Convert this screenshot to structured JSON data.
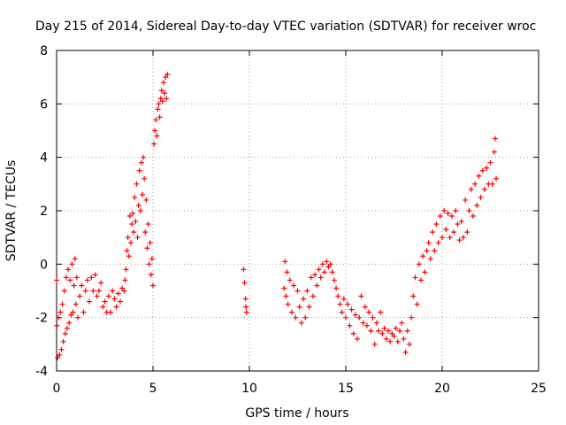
{
  "chart_data": {
    "type": "scatter",
    "title": "Day 215 of 2014, Sidereal Day-to-day VTEC variation (SDTVAR) for receiver wroc",
    "xlabel": "GPS time / hours",
    "ylabel": "SDTVAR / TECUs",
    "xlim": [
      0,
      25
    ],
    "ylim": [
      -4,
      8
    ],
    "xticks": [
      "0",
      "5",
      "10",
      "15",
      "20",
      "25"
    ],
    "yticks": [
      "-4",
      "-2",
      "0",
      "2",
      "4",
      "6",
      "8"
    ],
    "grid": true,
    "marker": "plus",
    "color": "#ff0000",
    "series": [
      {
        "name": "SDTVAR",
        "points": [
          [
            0.0,
            -0.6
          ],
          [
            0.02,
            -2.3
          ],
          [
            0.05,
            -3.5
          ],
          [
            0.1,
            -2.0
          ],
          [
            0.15,
            -3.4
          ],
          [
            0.2,
            -1.8
          ],
          [
            0.25,
            -3.2
          ],
          [
            0.3,
            -1.5
          ],
          [
            0.35,
            -2.9
          ],
          [
            0.4,
            -1.0
          ],
          [
            0.45,
            -2.6
          ],
          [
            0.5,
            -0.5
          ],
          [
            0.55,
            -2.4
          ],
          [
            0.6,
            -0.2
          ],
          [
            0.65,
            -2.2
          ],
          [
            0.7,
            -0.6
          ],
          [
            0.75,
            -1.9
          ],
          [
            0.8,
            0.0
          ],
          [
            0.85,
            -1.8
          ],
          [
            0.9,
            -0.8
          ],
          [
            0.95,
            0.2
          ],
          [
            1.0,
            -1.5
          ],
          [
            1.05,
            -0.5
          ],
          [
            1.1,
            -2.0
          ],
          [
            1.2,
            -1.2
          ],
          [
            1.3,
            -0.8
          ],
          [
            1.4,
            -1.8
          ],
          [
            1.5,
            -1.0
          ],
          [
            1.6,
            -0.6
          ],
          [
            1.7,
            -1.4
          ],
          [
            1.8,
            -0.5
          ],
          [
            1.9,
            -1.0
          ],
          [
            2.0,
            -0.4
          ],
          [
            2.1,
            -1.2
          ],
          [
            2.2,
            -1.0
          ],
          [
            2.3,
            -0.7
          ],
          [
            2.4,
            -1.6
          ],
          [
            2.5,
            -1.4
          ],
          [
            2.6,
            -1.8
          ],
          [
            2.7,
            -1.2
          ],
          [
            2.8,
            -1.8
          ],
          [
            2.9,
            -1.0
          ],
          [
            3.0,
            -1.3
          ],
          [
            3.1,
            -1.6
          ],
          [
            3.2,
            -1.1
          ],
          [
            3.3,
            -1.4
          ],
          [
            3.4,
            -0.9
          ],
          [
            3.5,
            -1.0
          ],
          [
            3.55,
            -0.6
          ],
          [
            3.6,
            -0.2
          ],
          [
            3.65,
            0.5
          ],
          [
            3.7,
            1.0
          ],
          [
            3.75,
            0.3
          ],
          [
            3.8,
            1.8
          ],
          [
            3.85,
            0.8
          ],
          [
            3.9,
            1.5
          ],
          [
            3.95,
            1.9
          ],
          [
            4.0,
            1.2
          ],
          [
            4.05,
            2.5
          ],
          [
            4.1,
            1.6
          ],
          [
            4.15,
            3.0
          ],
          [
            4.2,
            1.0
          ],
          [
            4.25,
            2.2
          ],
          [
            4.3,
            3.5
          ],
          [
            4.35,
            2.0
          ],
          [
            4.4,
            3.8
          ],
          [
            4.45,
            2.6
          ],
          [
            4.5,
            4.0
          ],
          [
            4.55,
            3.2
          ],
          [
            4.6,
            1.2
          ],
          [
            4.65,
            2.4
          ],
          [
            4.7,
            0.6
          ],
          [
            4.75,
            1.5
          ],
          [
            4.8,
            0.0
          ],
          [
            4.85,
            0.8
          ],
          [
            4.9,
            -0.4
          ],
          [
            4.95,
            0.2
          ],
          [
            5.0,
            -0.8
          ],
          [
            5.05,
            4.5
          ],
          [
            5.1,
            5.0
          ],
          [
            5.15,
            5.4
          ],
          [
            5.2,
            4.8
          ],
          [
            5.25,
            5.8
          ],
          [
            5.3,
            6.0
          ],
          [
            5.35,
            5.5
          ],
          [
            5.4,
            6.2
          ],
          [
            5.45,
            6.5
          ],
          [
            5.5,
            6.1
          ],
          [
            5.55,
            6.8
          ],
          [
            5.6,
            6.4
          ],
          [
            5.65,
            7.0
          ],
          [
            5.7,
            6.2
          ],
          [
            5.75,
            7.1
          ],
          [
            9.7,
            -0.2
          ],
          [
            9.75,
            -0.7
          ],
          [
            9.8,
            -1.3
          ],
          [
            9.82,
            -1.6
          ],
          [
            9.85,
            -1.8
          ],
          [
            11.8,
            -0.9
          ],
          [
            11.85,
            0.1
          ],
          [
            11.9,
            -1.2
          ],
          [
            11.95,
            -0.3
          ],
          [
            12.0,
            -1.5
          ],
          [
            12.1,
            -0.6
          ],
          [
            12.2,
            -1.8
          ],
          [
            12.3,
            -0.8
          ],
          [
            12.4,
            -2.0
          ],
          [
            12.5,
            -1.0
          ],
          [
            12.6,
            -1.6
          ],
          [
            12.7,
            -2.2
          ],
          [
            12.8,
            -1.3
          ],
          [
            12.9,
            -2.0
          ],
          [
            13.0,
            -1.0
          ],
          [
            13.1,
            -1.6
          ],
          [
            13.2,
            -0.5
          ],
          [
            13.3,
            -1.2
          ],
          [
            13.4,
            -0.4
          ],
          [
            13.5,
            -0.8
          ],
          [
            13.6,
            -0.2
          ],
          [
            13.7,
            -0.5
          ],
          [
            13.8,
            0.0
          ],
          [
            13.9,
            -0.3
          ],
          [
            14.0,
            0.1
          ],
          [
            14.1,
            -0.1
          ],
          [
            14.2,
            0.0
          ],
          [
            14.3,
            -0.3
          ],
          [
            14.4,
            -0.6
          ],
          [
            14.5,
            -0.9
          ],
          [
            14.6,
            -1.2
          ],
          [
            14.7,
            -1.5
          ],
          [
            14.8,
            -1.8
          ],
          [
            14.9,
            -1.3
          ],
          [
            15.0,
            -2.0
          ],
          [
            15.1,
            -1.5
          ],
          [
            15.2,
            -2.3
          ],
          [
            15.3,
            -1.7
          ],
          [
            15.4,
            -2.6
          ],
          [
            15.5,
            -1.9
          ],
          [
            15.6,
            -2.8
          ],
          [
            15.7,
            -2.0
          ],
          [
            15.8,
            -1.2
          ],
          [
            15.9,
            -2.2
          ],
          [
            16.0,
            -1.6
          ],
          [
            16.1,
            -2.3
          ],
          [
            16.2,
            -1.8
          ],
          [
            16.3,
            -2.5
          ],
          [
            16.4,
            -2.0
          ],
          [
            16.5,
            -3.0
          ],
          [
            16.6,
            -2.2
          ],
          [
            16.7,
            -2.5
          ],
          [
            16.8,
            -1.8
          ],
          [
            16.9,
            -2.6
          ],
          [
            17.0,
            -2.4
          ],
          [
            17.1,
            -2.8
          ],
          [
            17.2,
            -2.5
          ],
          [
            17.3,
            -2.9
          ],
          [
            17.4,
            -2.6
          ],
          [
            17.5,
            -2.7
          ],
          [
            17.6,
            -2.4
          ],
          [
            17.7,
            -2.9
          ],
          [
            17.8,
            -2.5
          ],
          [
            17.9,
            -2.2
          ],
          [
            18.0,
            -2.8
          ],
          [
            18.1,
            -3.3
          ],
          [
            18.2,
            -2.5
          ],
          [
            18.3,
            -3.0
          ],
          [
            18.4,
            -2.0
          ],
          [
            18.5,
            -1.2
          ],
          [
            18.6,
            -0.5
          ],
          [
            18.7,
            -1.5
          ],
          [
            18.8,
            0.0
          ],
          [
            18.9,
            -0.6
          ],
          [
            19.0,
            0.3
          ],
          [
            19.1,
            -0.3
          ],
          [
            19.2,
            0.5
          ],
          [
            19.3,
            0.8
          ],
          [
            19.4,
            0.2
          ],
          [
            19.5,
            1.2
          ],
          [
            19.6,
            0.5
          ],
          [
            19.7,
            1.5
          ],
          [
            19.8,
            0.8
          ],
          [
            19.9,
            1.8
          ],
          [
            20.0,
            1.0
          ],
          [
            20.1,
            2.0
          ],
          [
            20.2,
            1.3
          ],
          [
            20.3,
            1.9
          ],
          [
            20.4,
            1.0
          ],
          [
            20.5,
            1.8
          ],
          [
            20.6,
            1.2
          ],
          [
            20.7,
            2.0
          ],
          [
            20.8,
            1.5
          ],
          [
            20.9,
            0.9
          ],
          [
            21.0,
            1.6
          ],
          [
            21.1,
            1.0
          ],
          [
            21.2,
            2.4
          ],
          [
            21.3,
            1.2
          ],
          [
            21.4,
            2.0
          ],
          [
            21.5,
            2.8
          ],
          [
            21.6,
            1.8
          ],
          [
            21.7,
            3.0
          ],
          [
            21.8,
            2.2
          ],
          [
            21.9,
            3.3
          ],
          [
            22.0,
            2.5
          ],
          [
            22.1,
            3.5
          ],
          [
            22.2,
            2.8
          ],
          [
            22.3,
            3.6
          ],
          [
            22.4,
            3.0
          ],
          [
            22.5,
            3.8
          ],
          [
            22.6,
            3.0
          ],
          [
            22.7,
            4.2
          ],
          [
            22.75,
            4.7
          ],
          [
            22.8,
            3.2
          ]
        ]
      }
    ]
  }
}
